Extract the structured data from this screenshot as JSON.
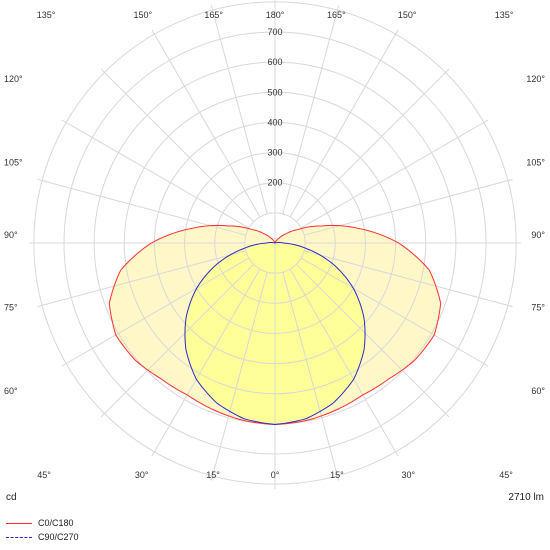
{
  "chart_data": {
    "type": "polar",
    "unit_label": "cd",
    "lumen_label": "2710 lm",
    "radial_ticks": [
      200,
      300,
      400,
      500,
      600,
      700
    ],
    "radial_max": 700,
    "angle_labels": [
      "0°",
      "15°",
      "30°",
      "45°",
      "60°",
      "75°",
      "90°",
      "105°",
      "120°",
      "135°",
      "150°",
      "165°",
      "180°"
    ],
    "series": [
      {
        "name": "C0/C180",
        "color": "#ff3030",
        "fill": "#fff7c8",
        "dash": "",
        "angles": [
          0,
          10,
          20,
          30,
          40,
          50,
          60,
          70,
          80,
          90,
          100,
          110,
          120,
          130,
          140,
          150,
          160,
          170,
          180
        ],
        "values": [
          602,
          598,
          590,
          582,
          588,
          605,
          610,
          585,
          520,
          410,
          280,
          165,
          90,
          48,
          22,
          8,
          3,
          1,
          0
        ]
      },
      {
        "name": "C90/C270",
        "color": "#2b2bcc",
        "fill": "#ffff99",
        "dash": "6,4",
        "angles": [
          0,
          10,
          20,
          30,
          40,
          50,
          60,
          70,
          80,
          90,
          100,
          110,
          120,
          130,
          140,
          150,
          160,
          170,
          180
        ],
        "values": [
          602,
          592,
          565,
          522,
          460,
          385,
          300,
          205,
          105,
          28,
          6,
          2,
          0,
          0,
          0,
          0,
          0,
          0,
          0
        ]
      }
    ]
  }
}
